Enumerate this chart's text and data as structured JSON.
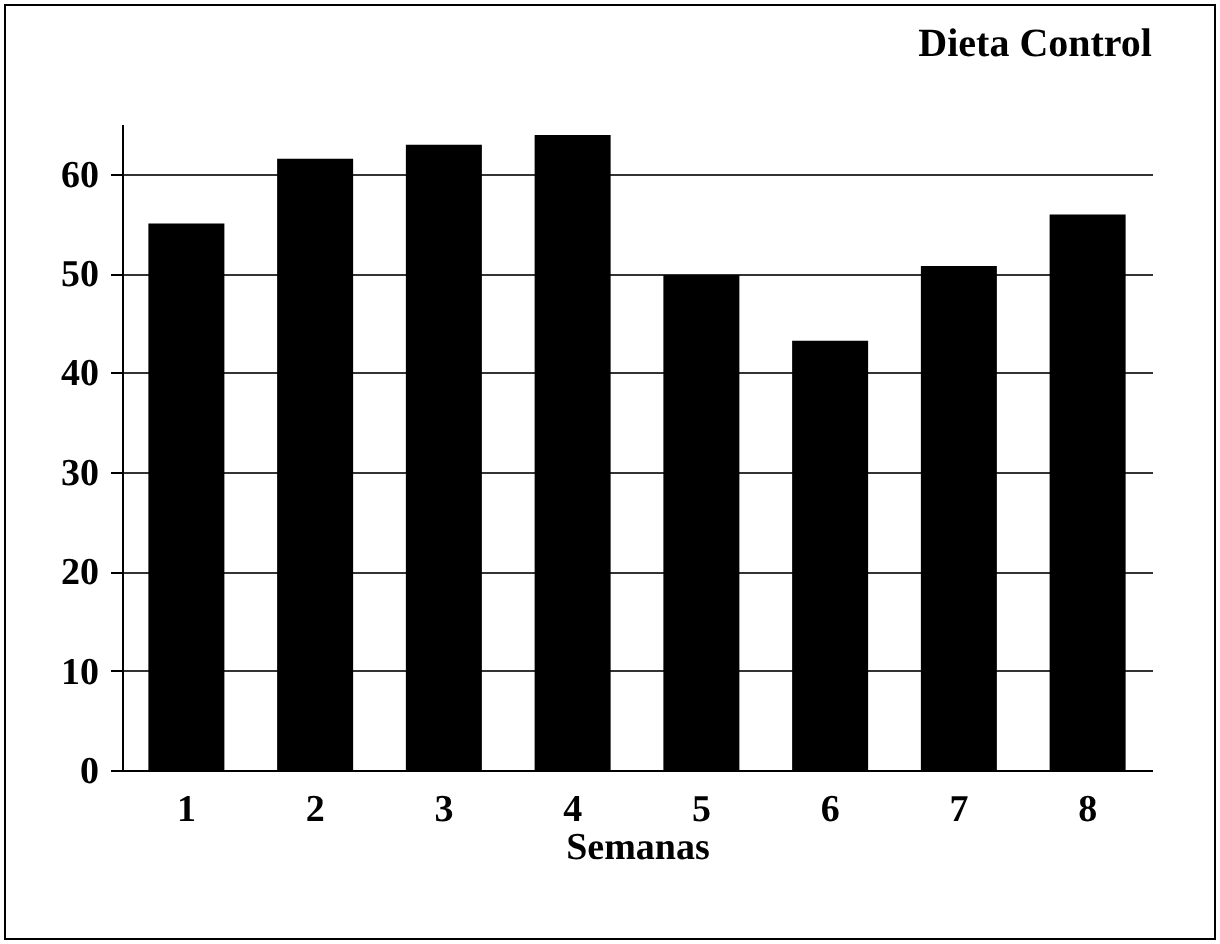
{
  "chart_data": {
    "type": "bar",
    "title": "Dieta Control",
    "xlabel": "Semanas",
    "categories": [
      "1",
      "2",
      "3",
      "4",
      "5",
      "6",
      "7",
      "8"
    ],
    "values": [
      55,
      61.5,
      62.9,
      63.9,
      49.8,
      43.2,
      50.7,
      55.9
    ],
    "color": "#000000",
    "ylim": [
      0,
      65
    ],
    "yticks": [
      0,
      10,
      20,
      30,
      40,
      50,
      60
    ],
    "grid": "y"
  }
}
